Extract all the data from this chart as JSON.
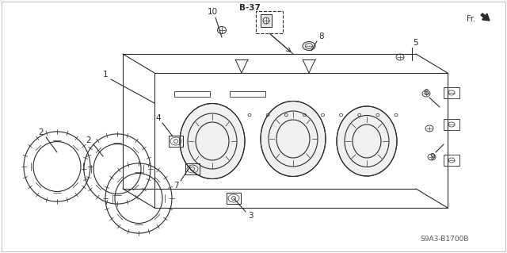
{
  "bg_color": "#ffffff",
  "line_color": "#2a2a2a",
  "watermark": "S9A3-B1700B",
  "fr_label": "Fr.",
  "ref_label": "B-37",
  "figsize": [
    6.4,
    3.19
  ],
  "dpi": 100
}
